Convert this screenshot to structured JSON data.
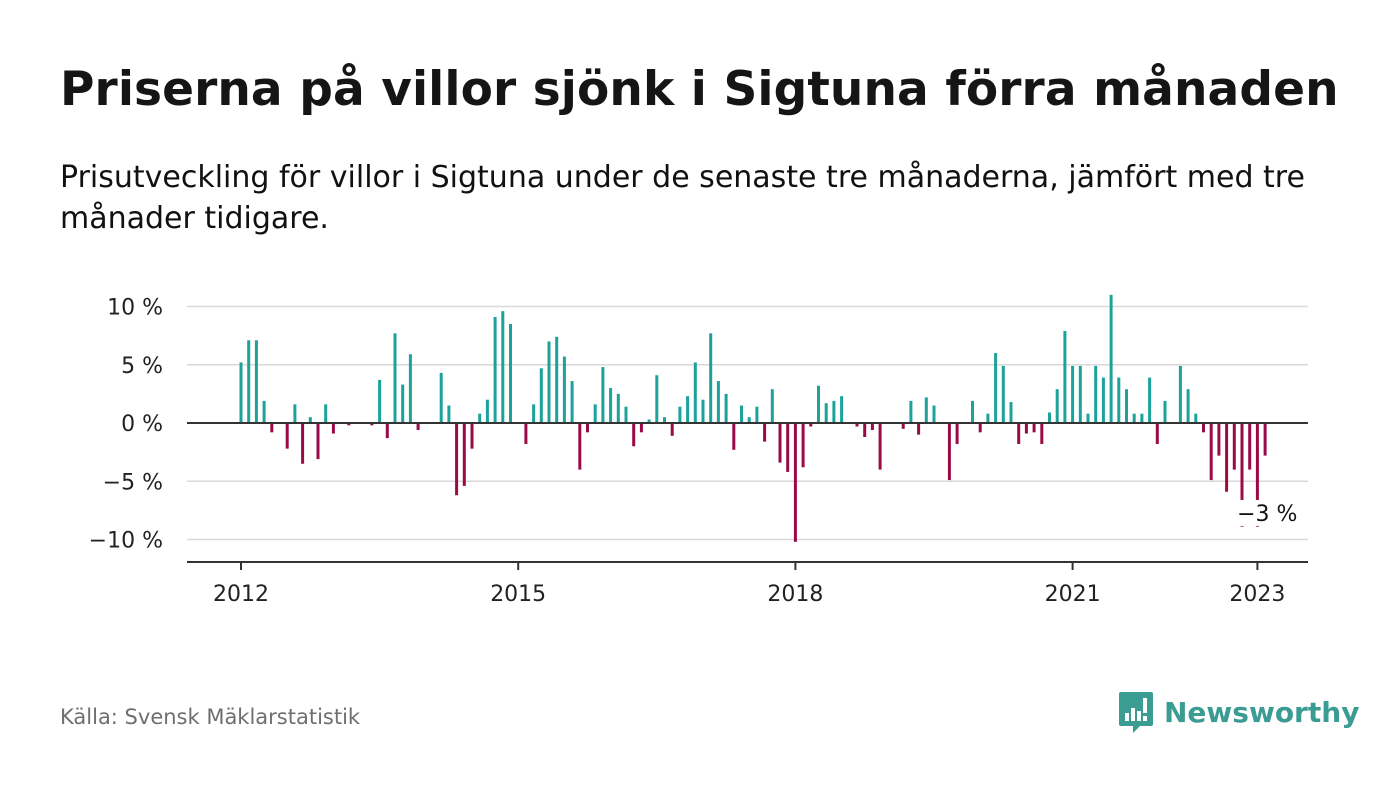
{
  "title": "Priserna på villor sjönk i Sigtuna förra månaden",
  "subtitle": "Prisutveckling för villor i Sigtuna under de senaste tre månaderna, jämfört med tre månader tidigare.",
  "source": "Källa: Svensk Mäklarstatistik",
  "brand": "Newsworthy",
  "colors": {
    "positive": "#1ba29b",
    "negative": "#9b0a47",
    "grid": "#d9d9d9",
    "axis": "#333333",
    "brand": "#3a9c92"
  },
  "chart_data": {
    "type": "bar",
    "title": "Priserna på villor sjönk i Sigtuna förra månaden",
    "xlabel": "",
    "ylabel": "",
    "ylim": [
      -12,
      10.5
    ],
    "yticks": [
      10,
      5,
      0,
      -5,
      -10
    ],
    "ytick_labels": [
      "10 %",
      "5 %",
      "0 %",
      "−5 %",
      "−10 %"
    ],
    "xticks": [
      2012,
      2015,
      2018,
      2021,
      2023
    ],
    "xtick_labels": [
      "2012",
      "2015",
      "2018",
      "2021",
      "2023"
    ],
    "x_start": "2012-01",
    "grid": true,
    "annotation": "−3 %",
    "series": [
      {
        "values": [
          5.2,
          7.1,
          7.1,
          1.9,
          -0.8,
          0,
          -2.2,
          1.6,
          -3.5,
          0.5,
          -3.1,
          1.6,
          -0.9,
          0,
          -0.2,
          0,
          0,
          -0.2,
          3.7,
          -1.3,
          7.7,
          3.3,
          5.9,
          -0.6,
          0,
          0,
          4.3,
          1.5,
          -6.2,
          -5.4,
          -2.2,
          0.8,
          2.0,
          9.1,
          9.6,
          8.5,
          0,
          -1.8,
          1.6,
          4.7,
          7.0,
          7.4,
          5.7,
          3.6,
          -4.0,
          -0.8,
          1.6,
          4.8,
          3.0,
          2.5,
          1.4,
          -2.0,
          -0.8,
          0.3,
          4.1,
          0.5,
          -1.1,
          1.4,
          2.3,
          5.2,
          2.0,
          7.7,
          3.6,
          2.5,
          -2.3,
          1.5,
          0.5,
          1.4,
          -1.6,
          2.9,
          -3.4,
          -4.2,
          -10.2,
          -3.8,
          -0.3,
          3.2,
          1.7,
          1.9,
          2.3,
          0,
          -0.3,
          -1.2,
          -0.6,
          -4.0,
          0,
          0,
          -0.5,
          1.9,
          -1.0,
          2.2,
          1.5,
          0,
          -4.9,
          -1.8,
          0,
          1.9,
          -0.8,
          0.8,
          6.0,
          4.9,
          1.8,
          -1.8,
          -0.9,
          -0.8,
          -1.8,
          0.9,
          2.9,
          7.9,
          4.9,
          4.9,
          0.8,
          4.9,
          3.9,
          11.0,
          3.9,
          2.9,
          0.8,
          0.8,
          3.9,
          -1.8,
          1.9,
          0,
          4.9,
          2.9,
          0.8,
          -0.8,
          -4.9,
          -2.8,
          -5.9,
          -4.0,
          -8.9,
          -4.0,
          -8.9,
          -2.8
        ]
      }
    ]
  }
}
